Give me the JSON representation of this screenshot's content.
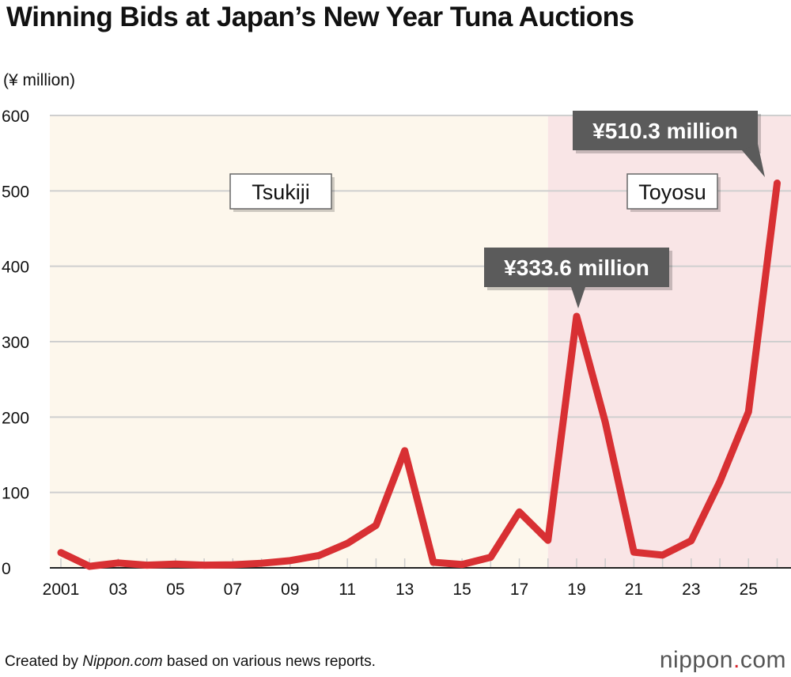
{
  "title": "Winning Bids at Japan’s New Year Tuna Auctions",
  "source": {
    "prefix": "Created by ",
    "brand": "Nippon.com",
    "suffix": " based on various news reports."
  },
  "logo": {
    "name": "nippon",
    "dot": ".",
    "tld": "com"
  },
  "chart_data": {
    "type": "line",
    "title": "Winning Bids at Japan’s New Year Tuna Auctions",
    "ylabel": "(¥ million)",
    "xlabel": "",
    "ylim": [
      0,
      600
    ],
    "yticks": [
      0,
      100,
      200,
      300,
      400,
      500,
      600
    ],
    "xtick_labels": [
      {
        "x": 2001,
        "label": "2001"
      },
      {
        "x": 2003,
        "label": "03"
      },
      {
        "x": 2005,
        "label": "05"
      },
      {
        "x": 2007,
        "label": "07"
      },
      {
        "x": 2009,
        "label": "09"
      },
      {
        "x": 2011,
        "label": "11"
      },
      {
        "x": 2013,
        "label": "13"
      },
      {
        "x": 2015,
        "label": "15"
      },
      {
        "x": 2017,
        "label": "17"
      },
      {
        "x": 2019,
        "label": "19"
      },
      {
        "x": 2021,
        "label": "21"
      },
      {
        "x": 2023,
        "label": "23"
      },
      {
        "x": 2025,
        "label": "25"
      }
    ],
    "grid": true,
    "x": [
      2001,
      2002,
      2003,
      2004,
      2005,
      2006,
      2007,
      2008,
      2009,
      2010,
      2011,
      2012,
      2013,
      2014,
      2015,
      2016,
      2017,
      2018,
      2019,
      2020,
      2021,
      2022,
      2023,
      2024,
      2025,
      2026
    ],
    "values": [
      20.2,
      2.0,
      6.5,
      3.5,
      5.0,
      3.6,
      4.1,
      6.1,
      9.6,
      16.3,
      32.5,
      56.5,
      155.4,
      7.4,
      4.5,
      14.0,
      74.2,
      36.5,
      333.6,
      193.2,
      20.8,
      16.9,
      36.0,
      114.2,
      207.0,
      510.3
    ],
    "line_color": "#d83033",
    "regions": [
      {
        "label": "Tsukiji",
        "from": 2000.6,
        "to": 2018,
        "color": "#fdf7ec"
      },
      {
        "label": "Toyosu",
        "from": 2018,
        "to": 2026.6,
        "color": "#f9e5e6"
      }
    ],
    "annotations": [
      {
        "x": 2019,
        "y": 333.6,
        "text": "¥333.6 million"
      },
      {
        "x": 2026,
        "y": 510.3,
        "text": "¥510.3 million"
      }
    ]
  }
}
